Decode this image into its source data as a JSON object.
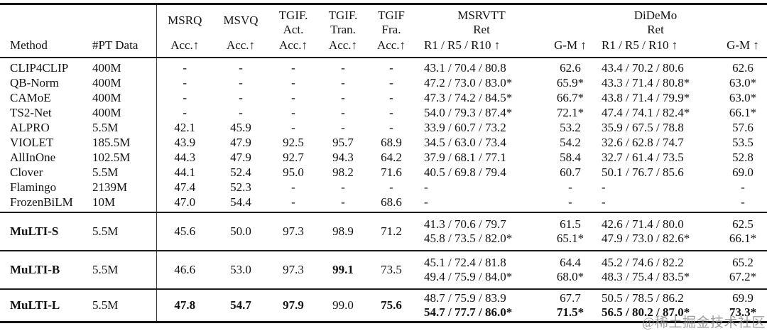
{
  "page": {
    "background_color": "#ffffff",
    "text_color": "#121212",
    "rule_color": "#141414"
  },
  "watermark": {
    "text": "@稀土掘金技术社区",
    "color": "#8d8d8d"
  },
  "table": {
    "header": {
      "method": "Method",
      "pt_data": "#PT Data",
      "metric_cols": [
        {
          "id": "msrq",
          "top": [
            "MSRQ"
          ],
          "bottom": "Acc.↑",
          "align": "center"
        },
        {
          "id": "msvq",
          "top": [
            "MSVQ"
          ],
          "bottom": "Acc.↑",
          "align": "center"
        },
        {
          "id": "tgif-act",
          "top": [
            "TGIF.",
            "Act."
          ],
          "bottom": "Acc.↑",
          "align": "center"
        },
        {
          "id": "tgif-tran",
          "top": [
            "TGIF.",
            "Tran."
          ],
          "bottom": "Acc.↑",
          "align": "center"
        },
        {
          "id": "tgif-fra",
          "top": [
            "TGIF",
            "Fra."
          ],
          "bottom": "Acc.↑",
          "align": "center"
        },
        {
          "id": "msrvtt-ret",
          "top": [
            "MSRVTT",
            "Ret"
          ],
          "bottom": "R1 / R5 / R10 ↑",
          "align": "left"
        },
        {
          "id": "msrvtt-gm",
          "top": [],
          "bottom": "G-M ↑",
          "align": "center"
        },
        {
          "id": "didemo-ret",
          "top": [
            "DiDeMo",
            "Ret"
          ],
          "bottom": "R1 / R5 / R10 ↑",
          "align": "left"
        },
        {
          "id": "didemo-gm",
          "top": [],
          "bottom": "G-M ↑",
          "align": "center"
        }
      ]
    },
    "sections": [
      {
        "id": "baselines",
        "rows": [
          {
            "method": "CLIP4CLIP",
            "bold": false,
            "pt": "400M",
            "cells": [
              "-",
              "-",
              "-",
              "-",
              "-",
              "43.1 / 70.4 / 80.8",
              "62.6",
              "43.4 / 70.2 / 80.6",
              "62.6"
            ]
          },
          {
            "method": "QB-Norm",
            "bold": false,
            "pt": "400M",
            "cells": [
              "-",
              "-",
              "-",
              "-",
              "-",
              "47.2 / 73.0 / 83.0*",
              "65.9*",
              "43.3 / 71.4 / 80.8*",
              "63.0*"
            ]
          },
          {
            "method": "CAMoE",
            "bold": false,
            "pt": "400M",
            "cells": [
              "-",
              "-",
              "-",
              "-",
              "-",
              "47.3 / 74.2 / 84.5*",
              "66.7*",
              "43.8 / 71.4 / 79.9*",
              "63.0*"
            ]
          },
          {
            "method": "TS2-Net",
            "bold": false,
            "pt": "400M",
            "cells": [
              "-",
              "-",
              "-",
              "-",
              "-",
              "54.0 / 79.3 / 87.4*",
              "72.1*",
              "47.4 / 74.1 / 82.4*",
              "66.1*"
            ]
          },
          {
            "method": "ALPRO",
            "bold": false,
            "pt": "5.5M",
            "cells": [
              "42.1",
              "45.9",
              "-",
              "-",
              "-",
              "33.9 / 60.7 / 73.2",
              "53.2",
              "35.9 / 67.5 / 78.8",
              "57.6"
            ]
          },
          {
            "method": "VIOLET",
            "bold": false,
            "pt": "185.5M",
            "cells": [
              "43.9",
              "47.9",
              "92.5",
              "95.7",
              "68.9",
              "34.5 / 63.0 / 73.4",
              "54.2",
              "32.6 / 62.8 / 74.7",
              "53.5"
            ]
          },
          {
            "method": "AllInOne",
            "bold": false,
            "pt": "102.5M",
            "cells": [
              "44.3",
              "47.9",
              "92.7",
              "94.3",
              "64.2",
              "37.9 / 68.1 / 77.1",
              "58.4",
              "32.7 / 61.4 / 73.5",
              "52.8"
            ]
          },
          {
            "method": "Clover",
            "bold": false,
            "pt": "5.5M",
            "cells": [
              "44.1",
              "52.4",
              "95.0",
              "98.2",
              "71.6",
              "40.5 / 69.8 / 79.4",
              "60.7",
              "50.1 / 76.7 / 85.6",
              "69.0"
            ]
          },
          {
            "method": "Flamingo",
            "bold": false,
            "pt": "2139M",
            "cells": [
              "47.4",
              "52.3",
              "-",
              "-",
              "-",
              "-",
              "-",
              "-",
              "-"
            ]
          },
          {
            "method": "FrozenBiLM",
            "bold": false,
            "pt": "10M",
            "cells": [
              "47.0",
              "54.4",
              "-",
              "-",
              "68.6",
              "-",
              "-",
              "-",
              "-"
            ]
          }
        ]
      },
      {
        "id": "multi-s",
        "rows": [
          {
            "method": "MuLTI-S",
            "bold": true,
            "pt": "5.5M",
            "cells": [
              "45.6",
              "50.0",
              "97.3",
              "98.9",
              "71.2",
              [
                {
                  "t": "41.3 / 70.6 / 79.7"
                },
                {
                  "t": "45.8 / 73.5 / 82.0*"
                }
              ],
              [
                {
                  "t": "61.5"
                },
                {
                  "t": "65.1*"
                }
              ],
              [
                {
                  "t": "42.6 / 71.4 / 80.0"
                },
                {
                  "t": "47.9 / 73.0 / 82.6*"
                }
              ],
              [
                {
                  "t": "62.5"
                },
                {
                  "t": "66.1*"
                }
              ]
            ]
          }
        ]
      },
      {
        "id": "multi-b",
        "rows": [
          {
            "method": "MuLTI-B",
            "bold": true,
            "pt": "5.5M",
            "cells": [
              "46.6",
              "53.0",
              "97.3",
              {
                "t": "99.1",
                "b": true
              },
              "73.5",
              [
                {
                  "t": "45.1 / 72.4 / 81.8"
                },
                {
                  "t": "49.4 / 75.9 / 84.0*"
                }
              ],
              [
                {
                  "t": "64.4"
                },
                {
                  "t": "68.0*"
                }
              ],
              [
                {
                  "t": "45.2 / 74.6 / 82.2"
                },
                {
                  "t": "48.3 / 75.4 / 83.5*"
                }
              ],
              [
                {
                  "t": "65.2"
                },
                {
                  "t": "67.2*"
                }
              ]
            ]
          }
        ]
      },
      {
        "id": "multi-l",
        "rows": [
          {
            "method": "MuLTI-L",
            "bold": true,
            "pt": "5.5M",
            "cells": [
              {
                "t": "47.8",
                "b": true
              },
              {
                "t": "54.7",
                "b": true
              },
              {
                "t": "97.9",
                "b": true
              },
              "99.0",
              {
                "t": "75.6",
                "b": true
              },
              [
                {
                  "t": "48.7 / 75.9 / 83.9"
                },
                {
                  "t": "54.7 / 77.7 / 86.0*",
                  "b": true
                }
              ],
              [
                {
                  "t": "67.7"
                },
                {
                  "t": "71.5*",
                  "b": true
                }
              ],
              [
                {
                  "t": "50.5 / 78.5 / 86.2"
                },
                {
                  "t": "56.5 / 80.2 / 87.0*",
                  "b": true
                }
              ],
              [
                {
                  "t": "69.9"
                },
                {
                  "t": "73.3*",
                  "b": true
                }
              ]
            ]
          }
        ]
      }
    ]
  }
}
